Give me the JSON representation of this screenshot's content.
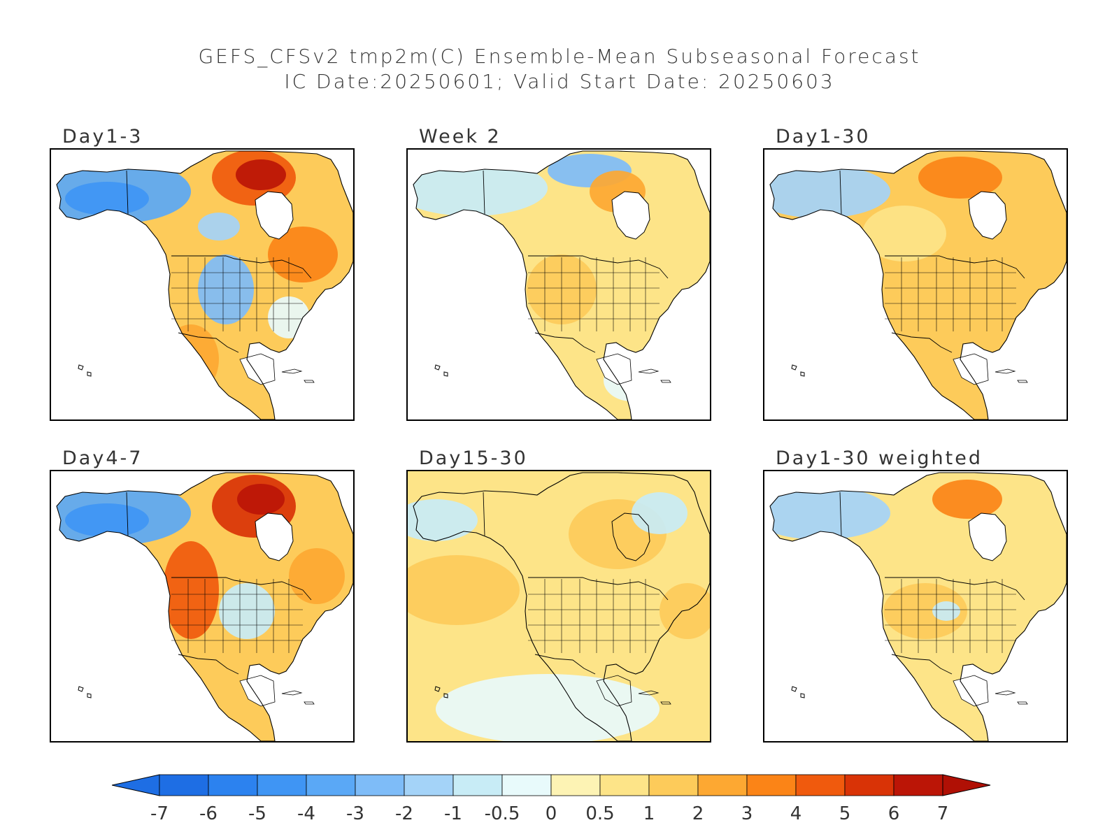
{
  "title": {
    "line1": "GEFS_CFSv2 tmp2m(C) Ensemble-Mean Subseasonal Forecast",
    "line2": "IC Date:20250601; Valid Start Date: 20250603"
  },
  "panels": [
    {
      "label": "Day1-3",
      "scheme": "d13"
    },
    {
      "label": "Week 2",
      "scheme": "w2"
    },
    {
      "label": "Day1-30",
      "scheme": "d130"
    },
    {
      "label": "Day4-7",
      "scheme": "d47"
    },
    {
      "label": "Day15-30",
      "scheme": "d1530"
    },
    {
      "label": "Day1-30 weighted",
      "scheme": "d130w"
    }
  ],
  "colorbar": {
    "ticks": [
      "-7",
      "-6",
      "-5",
      "-4",
      "-3",
      "-2",
      "-1",
      "-0.5",
      "0",
      "0.5",
      "1",
      "2",
      "3",
      "4",
      "5",
      "6",
      "7"
    ],
    "colors": [
      "#1e6ee4",
      "#2c82ef",
      "#3f95f4",
      "#5aa8f6",
      "#7ebcf8",
      "#a4d3f8",
      "#c8ecf6",
      "#e8fafb",
      "#fdf3b4",
      "#fde488",
      "#fdcb5a",
      "#fda832",
      "#fb8417",
      "#f05a0d",
      "#d93306",
      "#bb1506"
    ],
    "low_color": "#1e6ee4",
    "high_color": "#b01005"
  }
}
